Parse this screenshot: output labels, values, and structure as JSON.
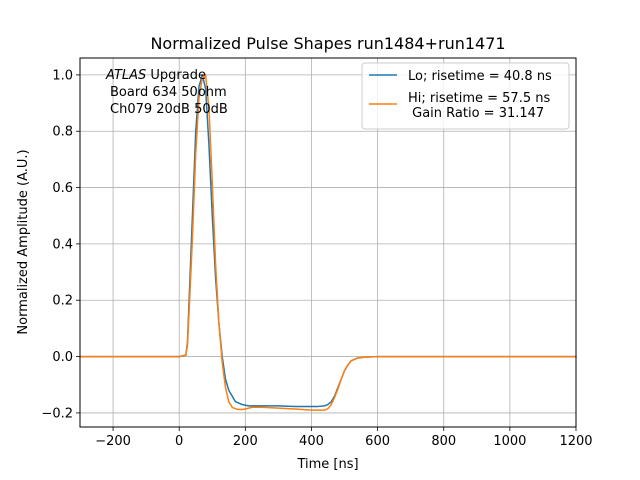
{
  "chart_data": {
    "type": "line",
    "title": "Normalized Pulse Shapes run1484+run1471",
    "xlabel": "Time [ns]",
    "ylabel": "Normalized Amplitude (A.U.)",
    "xlim": [
      -300,
      1200
    ],
    "ylim": [
      -0.25,
      1.06
    ],
    "grid": true,
    "xticks": [
      -200,
      0,
      200,
      400,
      600,
      800,
      1000,
      1200
    ],
    "xtick_labels": [
      "−200",
      "0",
      "200",
      "400",
      "600",
      "800",
      "1000",
      "1200"
    ],
    "yticks": [
      -0.2,
      0.0,
      0.2,
      0.4,
      0.6,
      0.8,
      1.0
    ],
    "ytick_labels": [
      "−0.2",
      "0.0",
      "0.2",
      "0.4",
      "0.6",
      "0.8",
      "1.0"
    ],
    "legend_position": "top-right",
    "annotation": {
      "line1_italic": "ATLAS",
      "line1_rest": " Upgrade",
      "line2": "Board 634 50ohm",
      "line3": "Ch079 20dB 50dB"
    },
    "series": [
      {
        "name": "Lo; risetime = 40.8 ns",
        "color": "#1f77b4",
        "x": [
          -300,
          0,
          20,
          25,
          30,
          40,
          50,
          60,
          70,
          80,
          90,
          100,
          110,
          120,
          130,
          140,
          150,
          170,
          190,
          210,
          250,
          300,
          350,
          400,
          420,
          440,
          450,
          460,
          470,
          480,
          490,
          500,
          510,
          520,
          540,
          560,
          600,
          800,
          1000,
          1200
        ],
        "y": [
          0.0,
          0.0,
          0.005,
          0.05,
          0.2,
          0.5,
          0.8,
          0.96,
          1.0,
          0.95,
          0.75,
          0.5,
          0.28,
          0.12,
          0.0,
          -0.08,
          -0.12,
          -0.16,
          -0.17,
          -0.175,
          -0.175,
          -0.175,
          -0.177,
          -0.177,
          -0.177,
          -0.175,
          -0.17,
          -0.16,
          -0.14,
          -0.11,
          -0.08,
          -0.05,
          -0.03,
          -0.015,
          -0.005,
          -0.002,
          0.0,
          0.0,
          0.0,
          0.0
        ]
      },
      {
        "name": "Hi; risetime = 57.5 ns\n Gain Ratio = 31.147",
        "color": "#ff7f0e",
        "x": [
          -300,
          0,
          20,
          25,
          30,
          40,
          50,
          60,
          70,
          80,
          90,
          100,
          110,
          120,
          130,
          140,
          150,
          160,
          170,
          180,
          190,
          200,
          220,
          250,
          300,
          350,
          400,
          420,
          440,
          450,
          460,
          470,
          480,
          490,
          500,
          510,
          520,
          540,
          560,
          600,
          800,
          1000,
          1200
        ],
        "y": [
          0.0,
          0.0,
          0.005,
          0.04,
          0.16,
          0.42,
          0.72,
          0.92,
          0.99,
          1.0,
          0.88,
          0.62,
          0.33,
          0.12,
          -0.02,
          -0.11,
          -0.16,
          -0.18,
          -0.185,
          -0.188,
          -0.188,
          -0.186,
          -0.18,
          -0.18,
          -0.183,
          -0.186,
          -0.19,
          -0.19,
          -0.19,
          -0.185,
          -0.17,
          -0.145,
          -0.115,
          -0.08,
          -0.05,
          -0.03,
          -0.015,
          -0.005,
          -0.002,
          0.0,
          0.0,
          0.0,
          0.0
        ]
      }
    ]
  }
}
